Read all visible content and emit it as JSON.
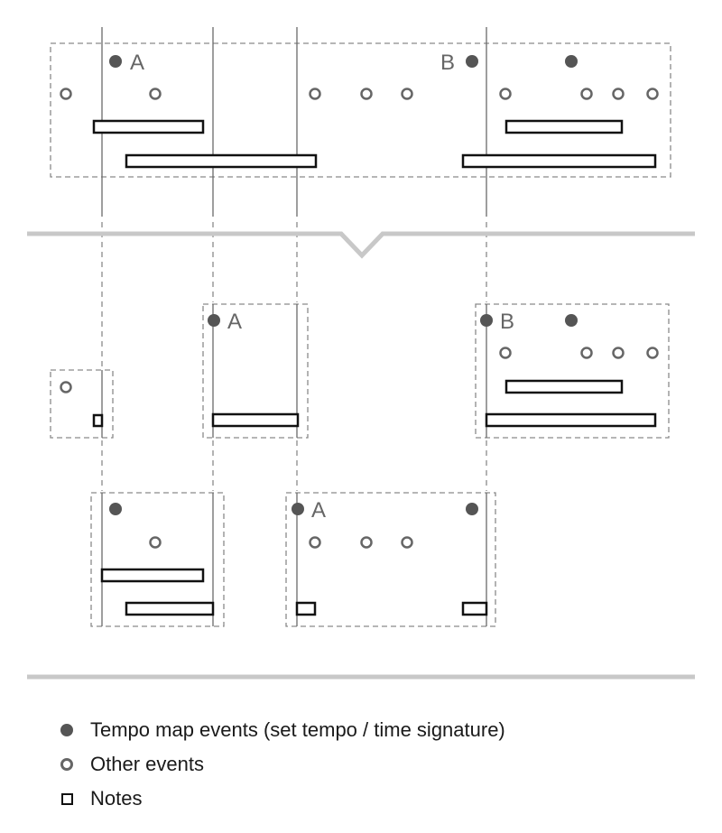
{
  "labels": {
    "a": "A",
    "b": "B"
  },
  "legend": {
    "tempo": "Tempo map events (set tempo / time signature)",
    "other": "Other events",
    "notes": "Notes"
  },
  "colors": {
    "dashed": "#8a8a8a",
    "barline": "#6a6a6a",
    "tempo_fill": "#555555",
    "other_stroke": "#666666",
    "note_stroke": "#111111",
    "divider": "#c8c8c8",
    "label": "#666666"
  }
}
